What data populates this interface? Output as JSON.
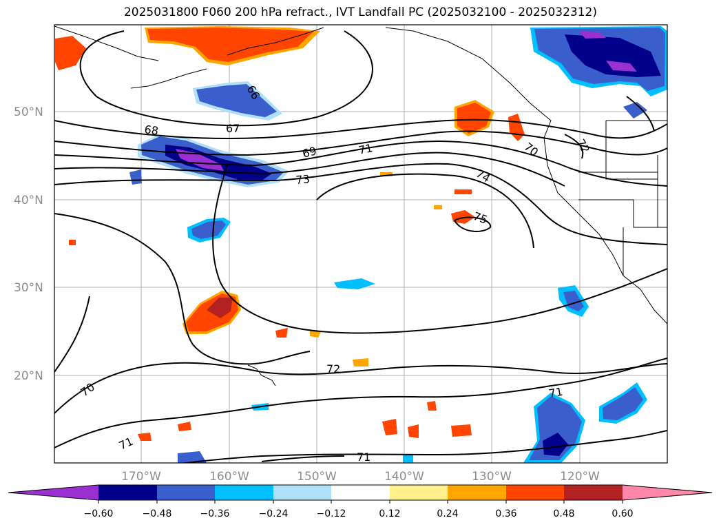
{
  "title": "2025031800 F060 200 hPa refract., IVT Landfall PC (2025032100 - 2025032312)",
  "lat_labels": [
    "50°N",
    "40°N",
    "30°N",
    "20°N"
  ],
  "lon_labels": [
    "170°W",
    "160°W",
    "150°W",
    "140°W",
    "130°W",
    "120°W"
  ],
  "contour_labels": [
    "66",
    "67",
    "68",
    "69",
    "71",
    "73",
    "74",
    "70",
    "75",
    "72",
    "70",
    "71",
    "71",
    "72",
    "71"
  ],
  "colorbar": {
    "ticks": [
      "−0.60",
      "−0.48",
      "−0.36",
      "−0.24",
      "−0.12",
      "0.12",
      "0.24",
      "0.36",
      "0.48",
      "0.60"
    ],
    "colors": [
      "#9b30d0",
      "#00008b",
      "#3a5fcd",
      "#00bfff",
      "#b0e0f8",
      "#ffffff",
      "#fff08c",
      "#ffa500",
      "#ff4500",
      "#b22222",
      "#ff88aa"
    ]
  }
}
